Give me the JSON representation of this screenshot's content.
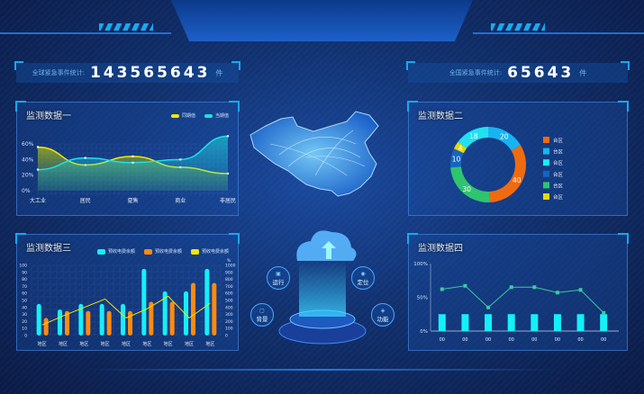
{
  "counters": {
    "global": {
      "label": "全球紧急事件统计:",
      "value": "143565643",
      "unit": "件"
    },
    "national": {
      "label": "全国紧急事件统计:",
      "value": "65643",
      "unit": "件"
    }
  },
  "center": {
    "features": [
      {
        "label": "运行",
        "icon": "monitor-icon"
      },
      {
        "label": "定位",
        "icon": "location-icon"
      },
      {
        "label": "背景",
        "icon": "image-icon"
      },
      {
        "label": "功能",
        "icon": "function-icon"
      }
    ]
  },
  "chart_data": [
    {
      "id": "chart1",
      "title": "监测数据一",
      "type": "area",
      "categories": [
        "大工业",
        "居民",
        "趸售",
        "商业",
        "非居民"
      ],
      "yticks": [
        "0%",
        "20%",
        "40%",
        "60%"
      ],
      "ylim": [
        0,
        60
      ],
      "series": [
        {
          "name": "同期值",
          "color": "#f5e600",
          "values": [
            56,
            33,
            44,
            30,
            22
          ]
        },
        {
          "name": "当期值",
          "color": "#1ee0e8",
          "values": [
            27,
            42,
            36,
            40,
            70
          ]
        }
      ],
      "legend": "top-right"
    },
    {
      "id": "chart2",
      "title": "监测数据二",
      "type": "pie",
      "donut": true,
      "slices": [
        {
          "label": "台区",
          "value": 20,
          "color": "#18b4f0"
        },
        {
          "label": "台区",
          "value": 40,
          "color": "#f06a10"
        },
        {
          "label": "台区",
          "value": 30,
          "color": "#2ec56e"
        },
        {
          "label": "台区",
          "value": 10,
          "color": "#1565c0"
        },
        {
          "label": "台区",
          "value": 4,
          "color": "#e6d800"
        },
        {
          "label": "台区",
          "value": 18,
          "color": "#22e0f0"
        }
      ],
      "legend_items": [
        {
          "label": "台区",
          "color": "#f06a10"
        },
        {
          "label": "台区",
          "color": "#18b4f0"
        },
        {
          "label": "台区",
          "color": "#14f0f8"
        },
        {
          "label": "台区",
          "color": "#1565c0"
        },
        {
          "label": "台区",
          "color": "#2ec56e"
        },
        {
          "label": "台区",
          "color": "#e6d800"
        }
      ],
      "legend": "right"
    },
    {
      "id": "chart3",
      "title": "监测数据三",
      "type": "bar",
      "categories": [
        "地区",
        "地区",
        "地区",
        "地区",
        "地区",
        "地区",
        "地区",
        "地区",
        "地区"
      ],
      "ylim": [
        0,
        100
      ],
      "y2lim": [
        0,
        1000
      ],
      "y2unit": "%",
      "yticks": [
        "0",
        "10",
        "20",
        "30",
        "40",
        "50",
        "60",
        "70",
        "80",
        "90",
        "100"
      ],
      "y2ticks": [
        "0",
        "100",
        "200",
        "300",
        "400",
        "500",
        "600",
        "700",
        "800",
        "900",
        "1000"
      ],
      "series": [
        {
          "name": "预收电费余额",
          "color": "#14f0f8",
          "type": "bar",
          "values": [
            45,
            37,
            45,
            45,
            45,
            95,
            63,
            63,
            95
          ]
        },
        {
          "name": "预收电费余额",
          "color": "#ff8a10",
          "type": "bar",
          "values": [
            25,
            35,
            35,
            35,
            35,
            48,
            48,
            75,
            75
          ]
        },
        {
          "name": "预收电费余额",
          "color": "#f5e600",
          "type": "line",
          "axis": "right",
          "values": [
            150,
            280,
            400,
            520,
            250,
            380,
            560,
            250,
            460
          ]
        }
      ],
      "legend": "top-right"
    },
    {
      "id": "chart4",
      "title": "监测数据四",
      "type": "bar",
      "categories": [
        "00",
        "00",
        "00",
        "00",
        "00",
        "00",
        "00",
        "00"
      ],
      "ylim": [
        0,
        100
      ],
      "yticks": [
        "0%",
        "50%",
        "100%"
      ],
      "series": [
        {
          "color": "#14f0f8",
          "type": "bar",
          "values": [
            25,
            25,
            25,
            25,
            25,
            25,
            25,
            25
          ]
        },
        {
          "color": "#3cc9a0",
          "type": "line",
          "values": [
            62,
            67,
            35,
            65,
            65,
            57,
            61,
            27
          ]
        }
      ]
    }
  ]
}
